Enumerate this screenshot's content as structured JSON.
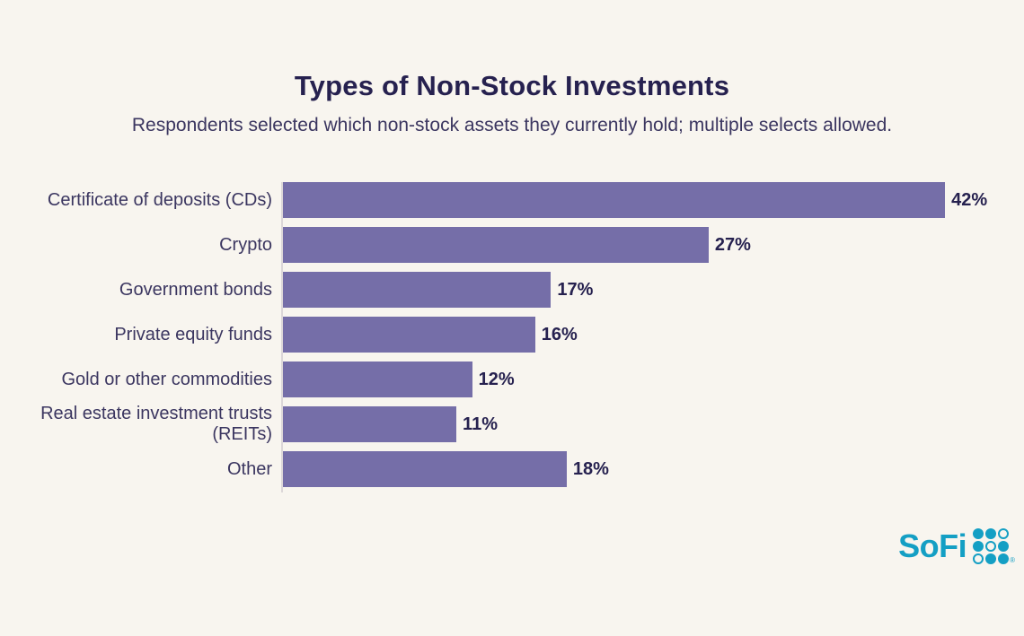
{
  "header": {
    "title": "Types of Non-Stock Investments",
    "subtitle": "Respondents selected which non-stock assets they currently hold; multiple selects allowed."
  },
  "chart_data": {
    "type": "bar",
    "orientation": "horizontal",
    "title": "Types of Non-Stock Investments",
    "subtitle": "Respondents selected which non-stock assets they currently hold; multiple selects allowed.",
    "categories": [
      "Certificate of deposits (CDs)",
      "Crypto",
      "Government bonds",
      "Private equity funds",
      "Gold or other commodities",
      "Real estate investment trusts (REITs)",
      "Other"
    ],
    "values": [
      42,
      27,
      17,
      16,
      12,
      11,
      18
    ],
    "value_labels": [
      "42%",
      "27%",
      "17%",
      "16%",
      "12%",
      "11%",
      "18%"
    ],
    "unit": "%",
    "xlim": [
      0,
      45
    ],
    "grid": false,
    "value_label_position": "end-of-bar",
    "bar_color": "#756ea8"
  },
  "branding": {
    "logo_text": "SoFi",
    "registered_mark": "®",
    "dot_grid": [
      [
        "filled",
        "filled",
        "outline"
      ],
      [
        "filled",
        "outline",
        "filled"
      ],
      [
        "outline",
        "filled",
        "filled"
      ]
    ]
  },
  "colors": {
    "background": "#f8f5ef",
    "title": "#26214f",
    "text": "#3b3660",
    "bar": "#756ea8",
    "value": "#26214f",
    "axis_line": "#dcd7d8",
    "brand_teal": "#149fc4"
  }
}
